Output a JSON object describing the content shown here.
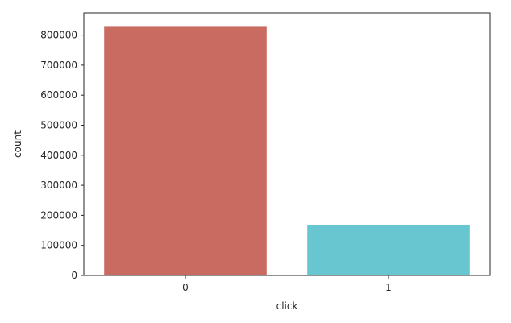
{
  "chart_data": {
    "type": "bar",
    "categories": [
      "0",
      "1"
    ],
    "values": [
      830000,
      169000
    ],
    "xlabel": "click",
    "ylabel": "count",
    "ylim": [
      0,
      874000
    ],
    "yticks": [
      0,
      100000,
      200000,
      300000,
      400000,
      500000,
      600000,
      700000,
      800000
    ],
    "ytick_labels": [
      "0",
      "100000",
      "200000",
      "300000",
      "400000",
      "500000",
      "600000",
      "700000",
      "800000"
    ],
    "colors": [
      "#ca6b62",
      "#68c6d0"
    ],
    "grid": false,
    "legend": "none"
  }
}
